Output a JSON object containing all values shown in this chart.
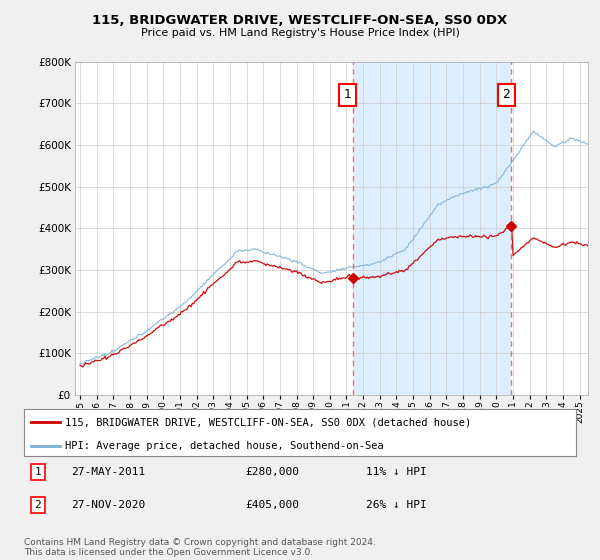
{
  "title": "115, BRIDGWATER DRIVE, WESTCLIFF-ON-SEA, SS0 0DX",
  "subtitle": "Price paid vs. HM Land Registry's House Price Index (HPI)",
  "ylim": [
    0,
    800000
  ],
  "xlim_start": 1994.7,
  "xlim_end": 2025.5,
  "sale1_year": 2011.37,
  "sale1_price": 280000,
  "sale2_year": 2020.9,
  "sale2_price": 405000,
  "legend_red": "115, BRIDGWATER DRIVE, WESTCLIFF-ON-SEA, SS0 0DX (detached house)",
  "legend_blue": "HPI: Average price, detached house, Southend-on-Sea",
  "footer": "Contains HM Land Registry data © Crown copyright and database right 2024.\nThis data is licensed under the Open Government Licence v3.0.",
  "red_color": "#cc0000",
  "blue_color": "#7bafd4",
  "vline_color": "#e87070",
  "fill_color": "#ddeeff",
  "background_color": "#f0f0f0",
  "plot_bg": "#ffffff",
  "hatch_color": "#cccccc"
}
